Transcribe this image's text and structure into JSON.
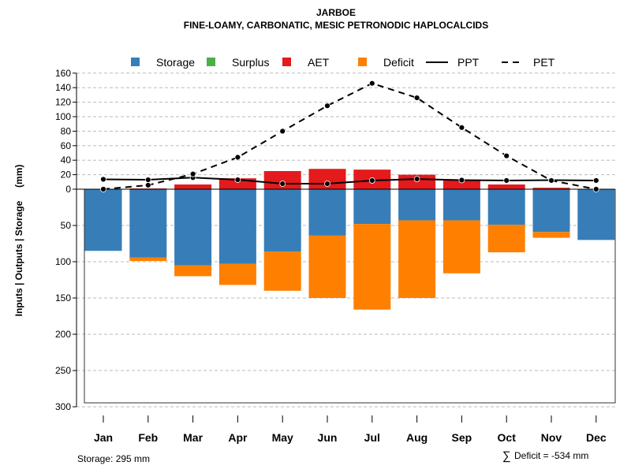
{
  "chart_data": {
    "type": "bar",
    "title": "JARBOE",
    "subtitle": "FINE-LOAMY, CARBONATIC, MESIC PETRONODIC HAPLOCALCIDS",
    "ylabel": "Inputs | Outputs | Storage     (mm)",
    "categories": [
      "Jan",
      "Feb",
      "Mar",
      "Apr",
      "May",
      "Jun",
      "Jul",
      "Aug",
      "Sep",
      "Oct",
      "Nov",
      "Dec"
    ],
    "ylim_up": [
      0,
      160
    ],
    "ylim_down": [
      0,
      300
    ],
    "yticks_up": [
      "0",
      "20",
      "40",
      "60",
      "80",
      "100",
      "120",
      "140",
      "160"
    ],
    "yticks_down": [
      "50",
      "100",
      "150",
      "200",
      "250",
      "300"
    ],
    "grid": true,
    "legend_position": "top",
    "legend": [
      "Storage",
      "Surplus",
      "AET",
      "Deficit",
      "PPT",
      "PET"
    ],
    "colors": {
      "Storage": "#377EB8",
      "Surplus": "#4DAF4A",
      "AET": "#E41A1C",
      "Deficit": "#FF7F00",
      "PPT": "#000000",
      "PET": "#000000"
    },
    "series": [
      {
        "name": "Storage",
        "values": [
          85,
          94,
          105,
          103,
          86,
          64,
          48,
          43,
          43,
          49,
          59,
          70
        ]
      },
      {
        "name": "Deficit",
        "values": [
          0,
          5,
          15,
          29,
          54,
          86,
          118,
          107,
          73,
          38,
          8,
          0
        ]
      },
      {
        "name": "Surplus",
        "values": [
          0,
          0,
          0,
          0,
          0,
          0,
          0,
          0,
          0,
          0,
          0,
          0
        ]
      },
      {
        "name": "AET",
        "values": [
          0,
          1,
          6.5,
          15,
          25,
          28,
          27,
          20,
          13,
          6.5,
          2,
          0
        ]
      },
      {
        "name": "PPT",
        "values": [
          13.6,
          13,
          16,
          13,
          7.6,
          7.6,
          12,
          14,
          12.5,
          12,
          12.5,
          12
        ]
      },
      {
        "name": "PET",
        "values": [
          0,
          5.5,
          21,
          44,
          80,
          115,
          146,
          126,
          85,
          46,
          12,
          0
        ]
      }
    ],
    "annotations": {
      "storage": "Storage: 295 mm",
      "deficit": "Deficit = -534 mm",
      "deficit_symbol": "∑"
    }
  }
}
